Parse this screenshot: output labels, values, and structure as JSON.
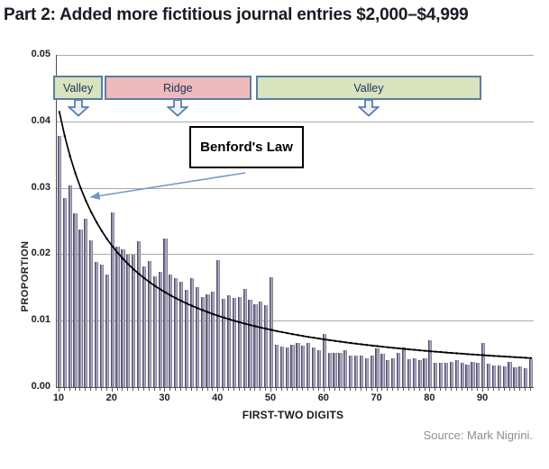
{
  "title": "Part 2: Added more fictitious journal entries $2,000–$4,999",
  "source": "Source: Mark Nigrini.",
  "chart_data": {
    "type": "bar",
    "title": "Part 2: Added more fictitious journal entries $2,000–$4,999",
    "xlabel": "FIRST-TWO DIGITS",
    "ylabel": "PROPORTION",
    "ylim": [
      0,
      0.05
    ],
    "ytick_values": [
      0.0,
      0.01,
      0.02,
      0.03,
      0.04,
      0.05
    ],
    "ytick_labels": [
      "0.00",
      "0.01",
      "0.02",
      "0.03",
      "0.04",
      "0.05"
    ],
    "xtick_labels": [
      "10",
      "20",
      "30",
      "40",
      "50",
      "60",
      "70",
      "80",
      "90"
    ],
    "grid": true,
    "x_first_digit": 10,
    "x": [
      10,
      11,
      12,
      13,
      14,
      15,
      16,
      17,
      18,
      19,
      20,
      21,
      22,
      23,
      24,
      25,
      26,
      27,
      28,
      29,
      30,
      31,
      32,
      33,
      34,
      35,
      36,
      37,
      38,
      39,
      40,
      41,
      42,
      43,
      44,
      45,
      46,
      47,
      48,
      49,
      50,
      51,
      52,
      53,
      54,
      55,
      56,
      57,
      58,
      59,
      60,
      61,
      62,
      63,
      64,
      65,
      66,
      67,
      68,
      69,
      70,
      71,
      72,
      73,
      74,
      75,
      76,
      77,
      78,
      79,
      80,
      81,
      82,
      83,
      84,
      85,
      86,
      87,
      88,
      89,
      90,
      91,
      92,
      93,
      94,
      95,
      96,
      97,
      98,
      99
    ],
    "values": [
      0.0378,
      0.0285,
      0.0304,
      0.0262,
      0.0237,
      0.0253,
      0.0221,
      0.0188,
      0.0184,
      0.017,
      0.0263,
      0.0212,
      0.0207,
      0.0199,
      0.0199,
      0.0219,
      0.0181,
      0.019,
      0.0167,
      0.0173,
      0.0224,
      0.017,
      0.0164,
      0.0158,
      0.0147,
      0.0164,
      0.015,
      0.0135,
      0.014,
      0.0144,
      0.0191,
      0.0133,
      0.0138,
      0.0134,
      0.0136,
      0.0148,
      0.0132,
      0.0125,
      0.0129,
      0.0123,
      0.0166,
      0.0064,
      0.0061,
      0.006,
      0.0064,
      0.0067,
      0.0062,
      0.0066,
      0.006,
      0.0055,
      0.008,
      0.0051,
      0.0052,
      0.0051,
      0.0055,
      0.0048,
      0.0047,
      0.0047,
      0.0043,
      0.0047,
      0.0058,
      0.005,
      0.0041,
      0.0043,
      0.0051,
      0.0059,
      0.0042,
      0.0043,
      0.0041,
      0.0043,
      0.0071,
      0.0037,
      0.0036,
      0.0037,
      0.0038,
      0.004,
      0.0037,
      0.0034,
      0.0038,
      0.0036,
      0.0067,
      0.0035,
      0.0032,
      0.0032,
      0.0031,
      0.0038,
      0.003,
      0.0031,
      0.0029,
      0.0042
    ],
    "overlay_line": {
      "name": "Benford's Law",
      "formula": "log10(1 + 1/d) for first-two digits d = 10..99"
    },
    "bands": [
      {
        "label": "Valley",
        "from_digit": 9.3,
        "to_digit": 18.7,
        "fill": "#d9e3be"
      },
      {
        "label": "Ridge",
        "from_digit": 19.0,
        "to_digit": 46.7,
        "fill": "#eebabc"
      },
      {
        "label": "Valley",
        "from_digit": 47.6,
        "to_digit": 90.1,
        "fill": "#d9e3be"
      }
    ],
    "colors": {
      "bar": "#8d87a6",
      "curve": "#000000",
      "band_border": "#5a7ea6",
      "annotation_arrow": "#7396c8",
      "gridline": "#aaaaaa"
    }
  }
}
